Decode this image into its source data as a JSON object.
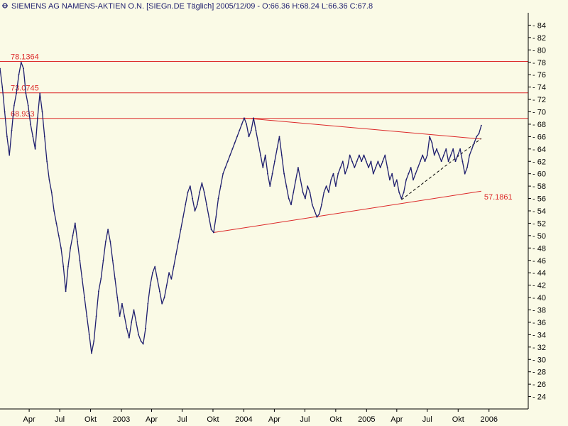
{
  "chart_data": {
    "type": "line",
    "title": "SIEMENS AG NAMENS-AKTIEN O.N. [SIEGn.DE  Täglich] 2005/12/09 - O:66.36 H:68.24 L:66.36 C:67.8",
    "ylim": [
      22,
      86
    ],
    "y_ticks": [
      24,
      26,
      28,
      30,
      32,
      34,
      36,
      38,
      40,
      42,
      44,
      46,
      48,
      50,
      52,
      54,
      56,
      58,
      60,
      62,
      64,
      66,
      68,
      70,
      72,
      74,
      76,
      78,
      80,
      82,
      84
    ],
    "x_range": [
      "2002-01-04",
      "2006-04-28"
    ],
    "x_ticks": [
      {
        "date": "2002-04-01",
        "label": "Apr"
      },
      {
        "date": "2002-07-01",
        "label": "Jul"
      },
      {
        "date": "2002-10-01",
        "label": "Okt"
      },
      {
        "date": "2003-01-01",
        "label": "2003"
      },
      {
        "date": "2003-04-01",
        "label": "Apr"
      },
      {
        "date": "2003-07-01",
        "label": "Jul"
      },
      {
        "date": "2003-10-01",
        "label": "Okt"
      },
      {
        "date": "2004-01-01",
        "label": "2004"
      },
      {
        "date": "2004-04-01",
        "label": "Apr"
      },
      {
        "date": "2004-07-01",
        "label": "Jul"
      },
      {
        "date": "2004-10-01",
        "label": "Okt"
      },
      {
        "date": "2005-01-01",
        "label": "2005"
      },
      {
        "date": "2005-04-01",
        "label": "Apr"
      },
      {
        "date": "2005-07-01",
        "label": "Jul"
      },
      {
        "date": "2005-10-01",
        "label": "Okt"
      },
      {
        "date": "2006-01-01",
        "label": "2006"
      }
    ],
    "series": [
      {
        "values": [
          {
            "x": "2002-01-04",
            "y": 77
          },
          {
            "x": "2002-01-11",
            "y": 74
          },
          {
            "x": "2002-01-18",
            "y": 70
          },
          {
            "x": "2002-01-25",
            "y": 66
          },
          {
            "x": "2002-02-01",
            "y": 63
          },
          {
            "x": "2002-02-08",
            "y": 67
          },
          {
            "x": "2002-02-15",
            "y": 71
          },
          {
            "x": "2002-02-22",
            "y": 73
          },
          {
            "x": "2002-03-01",
            "y": 76
          },
          {
            "x": "2002-03-08",
            "y": 78
          },
          {
            "x": "2002-03-15",
            "y": 77
          },
          {
            "x": "2002-03-22",
            "y": 73
          },
          {
            "x": "2002-03-29",
            "y": 71
          },
          {
            "x": "2002-04-05",
            "y": 68
          },
          {
            "x": "2002-04-12",
            "y": 66
          },
          {
            "x": "2002-04-19",
            "y": 64
          },
          {
            "x": "2002-04-26",
            "y": 69
          },
          {
            "x": "2002-05-03",
            "y": 73
          },
          {
            "x": "2002-05-10",
            "y": 70
          },
          {
            "x": "2002-05-17",
            "y": 66
          },
          {
            "x": "2002-05-24",
            "y": 62
          },
          {
            "x": "2002-05-31",
            "y": 59
          },
          {
            "x": "2002-06-07",
            "y": 57
          },
          {
            "x": "2002-06-14",
            "y": 54
          },
          {
            "x": "2002-06-21",
            "y": 52
          },
          {
            "x": "2002-06-28",
            "y": 50
          },
          {
            "x": "2002-07-05",
            "y": 48
          },
          {
            "x": "2002-07-12",
            "y": 45
          },
          {
            "x": "2002-07-19",
            "y": 41
          },
          {
            "x": "2002-07-26",
            "y": 45
          },
          {
            "x": "2002-08-02",
            "y": 48
          },
          {
            "x": "2002-08-09",
            "y": 50
          },
          {
            "x": "2002-08-16",
            "y": 52
          },
          {
            "x": "2002-08-23",
            "y": 49
          },
          {
            "x": "2002-08-30",
            "y": 46
          },
          {
            "x": "2002-09-06",
            "y": 43
          },
          {
            "x": "2002-09-13",
            "y": 40
          },
          {
            "x": "2002-09-20",
            "y": 37
          },
          {
            "x": "2002-09-27",
            "y": 34
          },
          {
            "x": "2002-10-04",
            "y": 31
          },
          {
            "x": "2002-10-11",
            "y": 33
          },
          {
            "x": "2002-10-18",
            "y": 37
          },
          {
            "x": "2002-10-25",
            "y": 41
          },
          {
            "x": "2002-11-01",
            "y": 43
          },
          {
            "x": "2002-11-08",
            "y": 46
          },
          {
            "x": "2002-11-15",
            "y": 49
          },
          {
            "x": "2002-11-22",
            "y": 51
          },
          {
            "x": "2002-11-29",
            "y": 49
          },
          {
            "x": "2002-12-06",
            "y": 46
          },
          {
            "x": "2002-12-13",
            "y": 43
          },
          {
            "x": "2002-12-20",
            "y": 40
          },
          {
            "x": "2002-12-27",
            "y": 37
          },
          {
            "x": "2003-01-03",
            "y": 39
          },
          {
            "x": "2003-01-10",
            "y": 37
          },
          {
            "x": "2003-01-17",
            "y": 35
          },
          {
            "x": "2003-01-24",
            "y": 33.5
          },
          {
            "x": "2003-01-31",
            "y": 36
          },
          {
            "x": "2003-02-07",
            "y": 38
          },
          {
            "x": "2003-02-14",
            "y": 36
          },
          {
            "x": "2003-02-21",
            "y": 34
          },
          {
            "x": "2003-02-28",
            "y": 33
          },
          {
            "x": "2003-03-07",
            "y": 32.5
          },
          {
            "x": "2003-03-14",
            "y": 35
          },
          {
            "x": "2003-03-21",
            "y": 39
          },
          {
            "x": "2003-03-28",
            "y": 42
          },
          {
            "x": "2003-04-04",
            "y": 44
          },
          {
            "x": "2003-04-11",
            "y": 45
          },
          {
            "x": "2003-04-18",
            "y": 43
          },
          {
            "x": "2003-04-25",
            "y": 41
          },
          {
            "x": "2003-05-02",
            "y": 39
          },
          {
            "x": "2003-05-09",
            "y": 40
          },
          {
            "x": "2003-05-16",
            "y": 42
          },
          {
            "x": "2003-05-23",
            "y": 44
          },
          {
            "x": "2003-05-30",
            "y": 43
          },
          {
            "x": "2003-06-06",
            "y": 45
          },
          {
            "x": "2003-06-13",
            "y": 47
          },
          {
            "x": "2003-06-20",
            "y": 49
          },
          {
            "x": "2003-06-27",
            "y": 51
          },
          {
            "x": "2003-07-04",
            "y": 53
          },
          {
            "x": "2003-07-11",
            "y": 55
          },
          {
            "x": "2003-07-18",
            "y": 57
          },
          {
            "x": "2003-07-25",
            "y": 58
          },
          {
            "x": "2003-08-01",
            "y": 56
          },
          {
            "x": "2003-08-08",
            "y": 54
          },
          {
            "x": "2003-08-15",
            "y": 55
          },
          {
            "x": "2003-08-22",
            "y": 57
          },
          {
            "x": "2003-08-29",
            "y": 58.5
          },
          {
            "x": "2003-09-05",
            "y": 57
          },
          {
            "x": "2003-09-12",
            "y": 55
          },
          {
            "x": "2003-09-19",
            "y": 53
          },
          {
            "x": "2003-09-26",
            "y": 51
          },
          {
            "x": "2003-10-03",
            "y": 50.5
          },
          {
            "x": "2003-10-10",
            "y": 53
          },
          {
            "x": "2003-10-17",
            "y": 56
          },
          {
            "x": "2003-10-24",
            "y": 58
          },
          {
            "x": "2003-10-31",
            "y": 60
          },
          {
            "x": "2003-11-07",
            "y": 61
          },
          {
            "x": "2003-11-14",
            "y": 62
          },
          {
            "x": "2003-11-21",
            "y": 63
          },
          {
            "x": "2003-11-28",
            "y": 64
          },
          {
            "x": "2003-12-05",
            "y": 65
          },
          {
            "x": "2003-12-12",
            "y": 66
          },
          {
            "x": "2003-12-19",
            "y": 67
          },
          {
            "x": "2003-12-26",
            "y": 68
          },
          {
            "x": "2004-01-02",
            "y": 69
          },
          {
            "x": "2004-01-09",
            "y": 68
          },
          {
            "x": "2004-01-16",
            "y": 66
          },
          {
            "x": "2004-01-23",
            "y": 67
          },
          {
            "x": "2004-01-30",
            "y": 69
          },
          {
            "x": "2004-02-06",
            "y": 67
          },
          {
            "x": "2004-02-13",
            "y": 65
          },
          {
            "x": "2004-02-20",
            "y": 63
          },
          {
            "x": "2004-02-27",
            "y": 61
          },
          {
            "x": "2004-03-05",
            "y": 63
          },
          {
            "x": "2004-03-12",
            "y": 60
          },
          {
            "x": "2004-03-19",
            "y": 58
          },
          {
            "x": "2004-03-26",
            "y": 60
          },
          {
            "x": "2004-04-02",
            "y": 62
          },
          {
            "x": "2004-04-09",
            "y": 64
          },
          {
            "x": "2004-04-16",
            "y": 66
          },
          {
            "x": "2004-04-23",
            "y": 63
          },
          {
            "x": "2004-04-30",
            "y": 60
          },
          {
            "x": "2004-05-07",
            "y": 58
          },
          {
            "x": "2004-05-14",
            "y": 56
          },
          {
            "x": "2004-05-21",
            "y": 55
          },
          {
            "x": "2004-05-28",
            "y": 57
          },
          {
            "x": "2004-06-04",
            "y": 59
          },
          {
            "x": "2004-06-11",
            "y": 61
          },
          {
            "x": "2004-06-18",
            "y": 59
          },
          {
            "x": "2004-06-25",
            "y": 57
          },
          {
            "x": "2004-07-02",
            "y": 56
          },
          {
            "x": "2004-07-09",
            "y": 58
          },
          {
            "x": "2004-07-16",
            "y": 57
          },
          {
            "x": "2004-07-23",
            "y": 55
          },
          {
            "x": "2004-07-30",
            "y": 54
          },
          {
            "x": "2004-08-06",
            "y": 53
          },
          {
            "x": "2004-08-13",
            "y": 53.5
          },
          {
            "x": "2004-08-20",
            "y": 55
          },
          {
            "x": "2004-08-27",
            "y": 57
          },
          {
            "x": "2004-09-03",
            "y": 58
          },
          {
            "x": "2004-09-10",
            "y": 57
          },
          {
            "x": "2004-09-17",
            "y": 59
          },
          {
            "x": "2004-09-24",
            "y": 60
          },
          {
            "x": "2004-10-01",
            "y": 58
          },
          {
            "x": "2004-10-08",
            "y": 60
          },
          {
            "x": "2004-10-15",
            "y": 61
          },
          {
            "x": "2004-10-22",
            "y": 62
          },
          {
            "x": "2004-10-29",
            "y": 60
          },
          {
            "x": "2004-11-05",
            "y": 61
          },
          {
            "x": "2004-11-12",
            "y": 63
          },
          {
            "x": "2004-11-19",
            "y": 62
          },
          {
            "x": "2004-11-26",
            "y": 61
          },
          {
            "x": "2004-12-03",
            "y": 62
          },
          {
            "x": "2004-12-10",
            "y": 63
          },
          {
            "x": "2004-12-17",
            "y": 62
          },
          {
            "x": "2004-12-24",
            "y": 63
          },
          {
            "x": "2004-12-31",
            "y": 62
          },
          {
            "x": "2005-01-07",
            "y": 61
          },
          {
            "x": "2005-01-14",
            "y": 62
          },
          {
            "x": "2005-01-21",
            "y": 60
          },
          {
            "x": "2005-01-28",
            "y": 61
          },
          {
            "x": "2005-02-04",
            "y": 62
          },
          {
            "x": "2005-02-11",
            "y": 61
          },
          {
            "x": "2005-02-18",
            "y": 62
          },
          {
            "x": "2005-02-25",
            "y": 63
          },
          {
            "x": "2005-03-04",
            "y": 61
          },
          {
            "x": "2005-03-11",
            "y": 59
          },
          {
            "x": "2005-03-18",
            "y": 60
          },
          {
            "x": "2005-03-25",
            "y": 58
          },
          {
            "x": "2005-04-01",
            "y": 59
          },
          {
            "x": "2005-04-08",
            "y": 57
          },
          {
            "x": "2005-04-15",
            "y": 56
          },
          {
            "x": "2005-04-22",
            "y": 57
          },
          {
            "x": "2005-04-29",
            "y": 59
          },
          {
            "x": "2005-05-06",
            "y": 60
          },
          {
            "x": "2005-05-13",
            "y": 61
          },
          {
            "x": "2005-05-20",
            "y": 59
          },
          {
            "x": "2005-05-27",
            "y": 60
          },
          {
            "x": "2005-06-03",
            "y": 61
          },
          {
            "x": "2005-06-10",
            "y": 62
          },
          {
            "x": "2005-06-17",
            "y": 63
          },
          {
            "x": "2005-06-24",
            "y": 62
          },
          {
            "x": "2005-07-01",
            "y": 63
          },
          {
            "x": "2005-07-08",
            "y": 66
          },
          {
            "x": "2005-07-15",
            "y": 65
          },
          {
            "x": "2005-07-22",
            "y": 63
          },
          {
            "x": "2005-07-29",
            "y": 64
          },
          {
            "x": "2005-08-05",
            "y": 63
          },
          {
            "x": "2005-08-12",
            "y": 62
          },
          {
            "x": "2005-08-19",
            "y": 63
          },
          {
            "x": "2005-08-26",
            "y": 64
          },
          {
            "x": "2005-09-02",
            "y": 62
          },
          {
            "x": "2005-09-09",
            "y": 63
          },
          {
            "x": "2005-09-16",
            "y": 64
          },
          {
            "x": "2005-09-23",
            "y": 62
          },
          {
            "x": "2005-09-30",
            "y": 63
          },
          {
            "x": "2005-10-07",
            "y": 64
          },
          {
            "x": "2005-10-14",
            "y": 62
          },
          {
            "x": "2005-10-21",
            "y": 60
          },
          {
            "x": "2005-10-28",
            "y": 61
          },
          {
            "x": "2005-11-04",
            "y": 63
          },
          {
            "x": "2005-11-11",
            "y": 64
          },
          {
            "x": "2005-11-18",
            "y": 65
          },
          {
            "x": "2005-11-25",
            "y": 66
          },
          {
            "x": "2005-12-02",
            "y": 66.5
          },
          {
            "x": "2005-12-09",
            "y": 67.8
          }
        ]
      }
    ],
    "horizontal_levels": [
      {
        "label": "78.1364",
        "value": 78.1364
      },
      {
        "label": "73.0745",
        "value": 73.0745
      },
      {
        "label": "68.933",
        "value": 68.933
      }
    ],
    "trend_lines": [
      {
        "style": "solid",
        "from": {
          "x": "2003-10-03",
          "y": 50.5
        },
        "to": {
          "x": "2005-12-09",
          "y": 57.1861
        },
        "label": "57.1861"
      },
      {
        "style": "solid",
        "from": {
          "x": "2004-01-02",
          "y": 69.0
        },
        "to": {
          "x": "2005-12-09",
          "y": 65.6
        }
      },
      {
        "style": "dashed",
        "from": {
          "x": "2005-04-15",
          "y": 55.8
        },
        "to": {
          "x": "2005-12-09",
          "y": 65.7
        }
      }
    ],
    "grid": false,
    "colors": {
      "price": "#1E1E6E",
      "levels": "#DC2828",
      "background": "#FAFAE6",
      "axis": "#000000"
    }
  }
}
